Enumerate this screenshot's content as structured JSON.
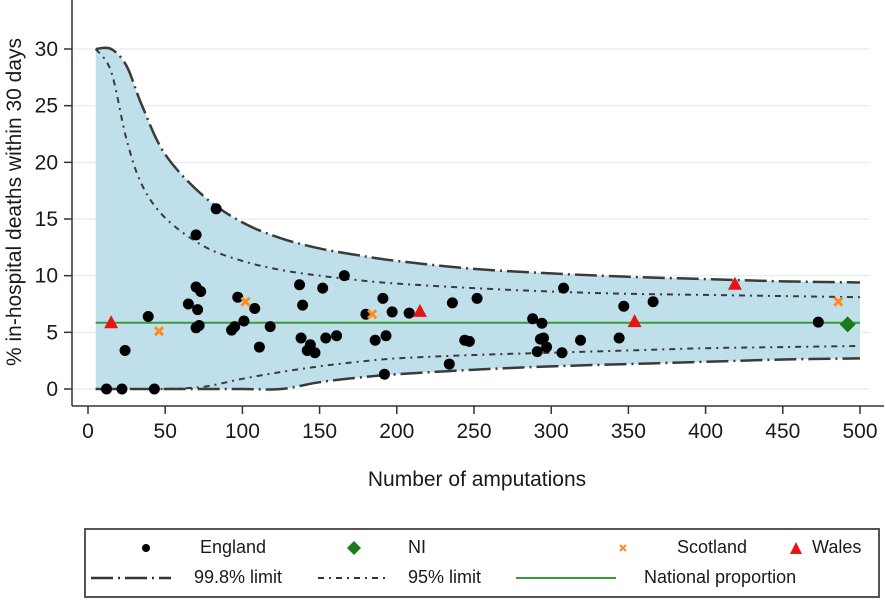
{
  "chart_data": {
    "type": "scatter",
    "title": "",
    "xlabel": "Number of amputations",
    "ylabel": "% in-hospital deaths within 30 days",
    "xlim": [
      0,
      500
    ],
    "ylim": [
      0,
      30
    ],
    "xticks": [
      0,
      50,
      100,
      150,
      200,
      250,
      300,
      350,
      400,
      450,
      500
    ],
    "yticks": [
      0,
      5,
      10,
      15,
      20,
      25,
      30
    ],
    "grid": "horizontal",
    "legend_position": "bottom",
    "national_proportion": 5.85,
    "limits": {
      "x": [
        5,
        15,
        25,
        35,
        50,
        75,
        100,
        125,
        150,
        175,
        200,
        250,
        300,
        350,
        400,
        450,
        500
      ],
      "upper_998": [
        30,
        30,
        28.5,
        25,
        20.7,
        17,
        14.7,
        13.3,
        12.4,
        11.8,
        11.3,
        10.6,
        10.2,
        9.9,
        9.7,
        9.5,
        9.4
      ],
      "lower_998": [
        0,
        0,
        0,
        0,
        0,
        0,
        0,
        0,
        0.6,
        1.0,
        1.3,
        1.7,
        2.0,
        2.2,
        2.4,
        2.6,
        2.7
      ],
      "upper_95": [
        30,
        28,
        22,
        18,
        15.1,
        12.6,
        11.3,
        10.5,
        10.0,
        9.6,
        9.3,
        8.9,
        8.6,
        8.4,
        8.3,
        8.2,
        8.1
      ],
      "lower_95": [
        0,
        0,
        0,
        0,
        0,
        0.2,
        0.9,
        1.5,
        2.0,
        2.4,
        2.7,
        3.0,
        3.2,
        3.4,
        3.6,
        3.7,
        3.8
      ]
    },
    "series": [
      {
        "name": "England",
        "marker": "circle",
        "color": "#000000",
        "points": [
          [
            12,
            0
          ],
          [
            22,
            0
          ],
          [
            43,
            0
          ],
          [
            24,
            3.4
          ],
          [
            39,
            6.4
          ],
          [
            83,
            15.9
          ],
          [
            70,
            13.6
          ],
          [
            65,
            7.5
          ],
          [
            70,
            9.0
          ],
          [
            73,
            8.6
          ],
          [
            71,
            7.0
          ],
          [
            70,
            5.4
          ],
          [
            72,
            5.6
          ],
          [
            93,
            5.2
          ],
          [
            95,
            5.5
          ],
          [
            97,
            8.1
          ],
          [
            101,
            6.0
          ],
          [
            108,
            7.1
          ],
          [
            111,
            3.7
          ],
          [
            118,
            5.5
          ],
          [
            137,
            9.2
          ],
          [
            139,
            7.4
          ],
          [
            138,
            4.5
          ],
          [
            142,
            3.4
          ],
          [
            144,
            3.9
          ],
          [
            147,
            3.2
          ],
          [
            152,
            8.9
          ],
          [
            154,
            4.5
          ],
          [
            161,
            4.7
          ],
          [
            166,
            10.0
          ],
          [
            180,
            6.6
          ],
          [
            186,
            4.3
          ],
          [
            191,
            8.0
          ],
          [
            192,
            1.3
          ],
          [
            193,
            4.7
          ],
          [
            197,
            6.8
          ],
          [
            208,
            6.7
          ],
          [
            234,
            2.2
          ],
          [
            236,
            7.6
          ],
          [
            244,
            4.3
          ],
          [
            247,
            4.2
          ],
          [
            252,
            8.0
          ],
          [
            288,
            6.2
          ],
          [
            291,
            3.3
          ],
          [
            293,
            4.4
          ],
          [
            294,
            5.8
          ],
          [
            295,
            4.5
          ],
          [
            297,
            3.7
          ],
          [
            307,
            3.2
          ],
          [
            308,
            8.9
          ],
          [
            319,
            4.3
          ],
          [
            344,
            4.5
          ],
          [
            347,
            7.3
          ],
          [
            366,
            7.7
          ],
          [
            473,
            5.9
          ]
        ]
      },
      {
        "name": "NI",
        "marker": "diamond",
        "color": "#1a7a1a",
        "points": [
          [
            492,
            5.7
          ]
        ]
      },
      {
        "name": "Scotland",
        "marker": "x",
        "color": "#ff8c1a",
        "points": [
          [
            46,
            5.1
          ],
          [
            102,
            7.7
          ],
          [
            184,
            6.6
          ],
          [
            486,
            7.7
          ]
        ]
      },
      {
        "name": "Wales",
        "marker": "triangle",
        "color": "#e81414",
        "points": [
          [
            15,
            5.8
          ],
          [
            215,
            6.8
          ],
          [
            354,
            5.9
          ],
          [
            419,
            9.2
          ]
        ]
      }
    ],
    "legend": [
      {
        "label": "England",
        "symbol": "circle"
      },
      {
        "label": "NI",
        "symbol": "diamond"
      },
      {
        "label": "Scotland",
        "symbol": "x"
      },
      {
        "label": "Wales",
        "symbol": "triangle"
      },
      {
        "label": "99.8% limit",
        "symbol": "long-dash-dot"
      },
      {
        "label": "95% limit",
        "symbol": "dash-dot"
      },
      {
        "label": "National proportion",
        "symbol": "solid-green"
      }
    ],
    "colors": {
      "band_fill": "#bfe0ea",
      "national_line": "#3a9a3a",
      "limit_line": "#3a3a3a",
      "grid": "#e6f0f2"
    }
  }
}
